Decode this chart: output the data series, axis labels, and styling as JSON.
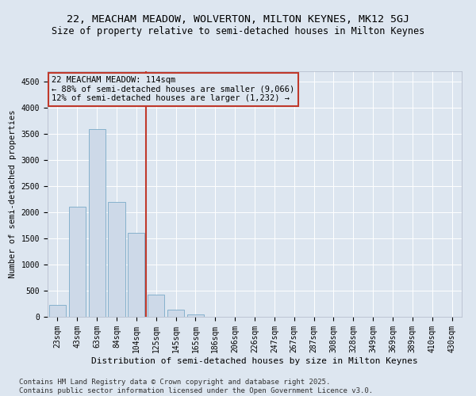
{
  "title1": "22, MEACHAM MEADOW, WOLVERTON, MILTON KEYNES, MK12 5GJ",
  "title2": "Size of property relative to semi-detached houses in Milton Keynes",
  "xlabel": "Distribution of semi-detached houses by size in Milton Keynes",
  "ylabel": "Number of semi-detached properties",
  "categories": [
    "23sqm",
    "43sqm",
    "63sqm",
    "84sqm",
    "104sqm",
    "125sqm",
    "145sqm",
    "165sqm",
    "186sqm",
    "206sqm",
    "226sqm",
    "247sqm",
    "267sqm",
    "287sqm",
    "308sqm",
    "328sqm",
    "349sqm",
    "369sqm",
    "389sqm",
    "410sqm",
    "430sqm"
  ],
  "values": [
    230,
    2100,
    3600,
    2200,
    1600,
    430,
    130,
    50,
    0,
    0,
    0,
    0,
    0,
    0,
    0,
    0,
    0,
    0,
    0,
    0,
    0
  ],
  "bar_color": "#cdd9e8",
  "bar_edge_color": "#7aaac8",
  "vline_x": 4.5,
  "vline_color": "#c0392b",
  "annotation_text": "22 MEACHAM MEADOW: 114sqm\n← 88% of semi-detached houses are smaller (9,066)\n12% of semi-detached houses are larger (1,232) →",
  "annotation_box_color": "#c0392b",
  "background_color": "#dde6f0",
  "ylim": [
    0,
    4700
  ],
  "yticks": [
    0,
    500,
    1000,
    1500,
    2000,
    2500,
    3000,
    3500,
    4000,
    4500
  ],
  "footer": "Contains HM Land Registry data © Crown copyright and database right 2025.\nContains public sector information licensed under the Open Government Licence v3.0.",
  "title1_fontsize": 9.5,
  "title2_fontsize": 8.5,
  "xlabel_fontsize": 8,
  "ylabel_fontsize": 7.5,
  "tick_fontsize": 7,
  "annotation_fontsize": 7.5,
  "footer_fontsize": 6.5
}
